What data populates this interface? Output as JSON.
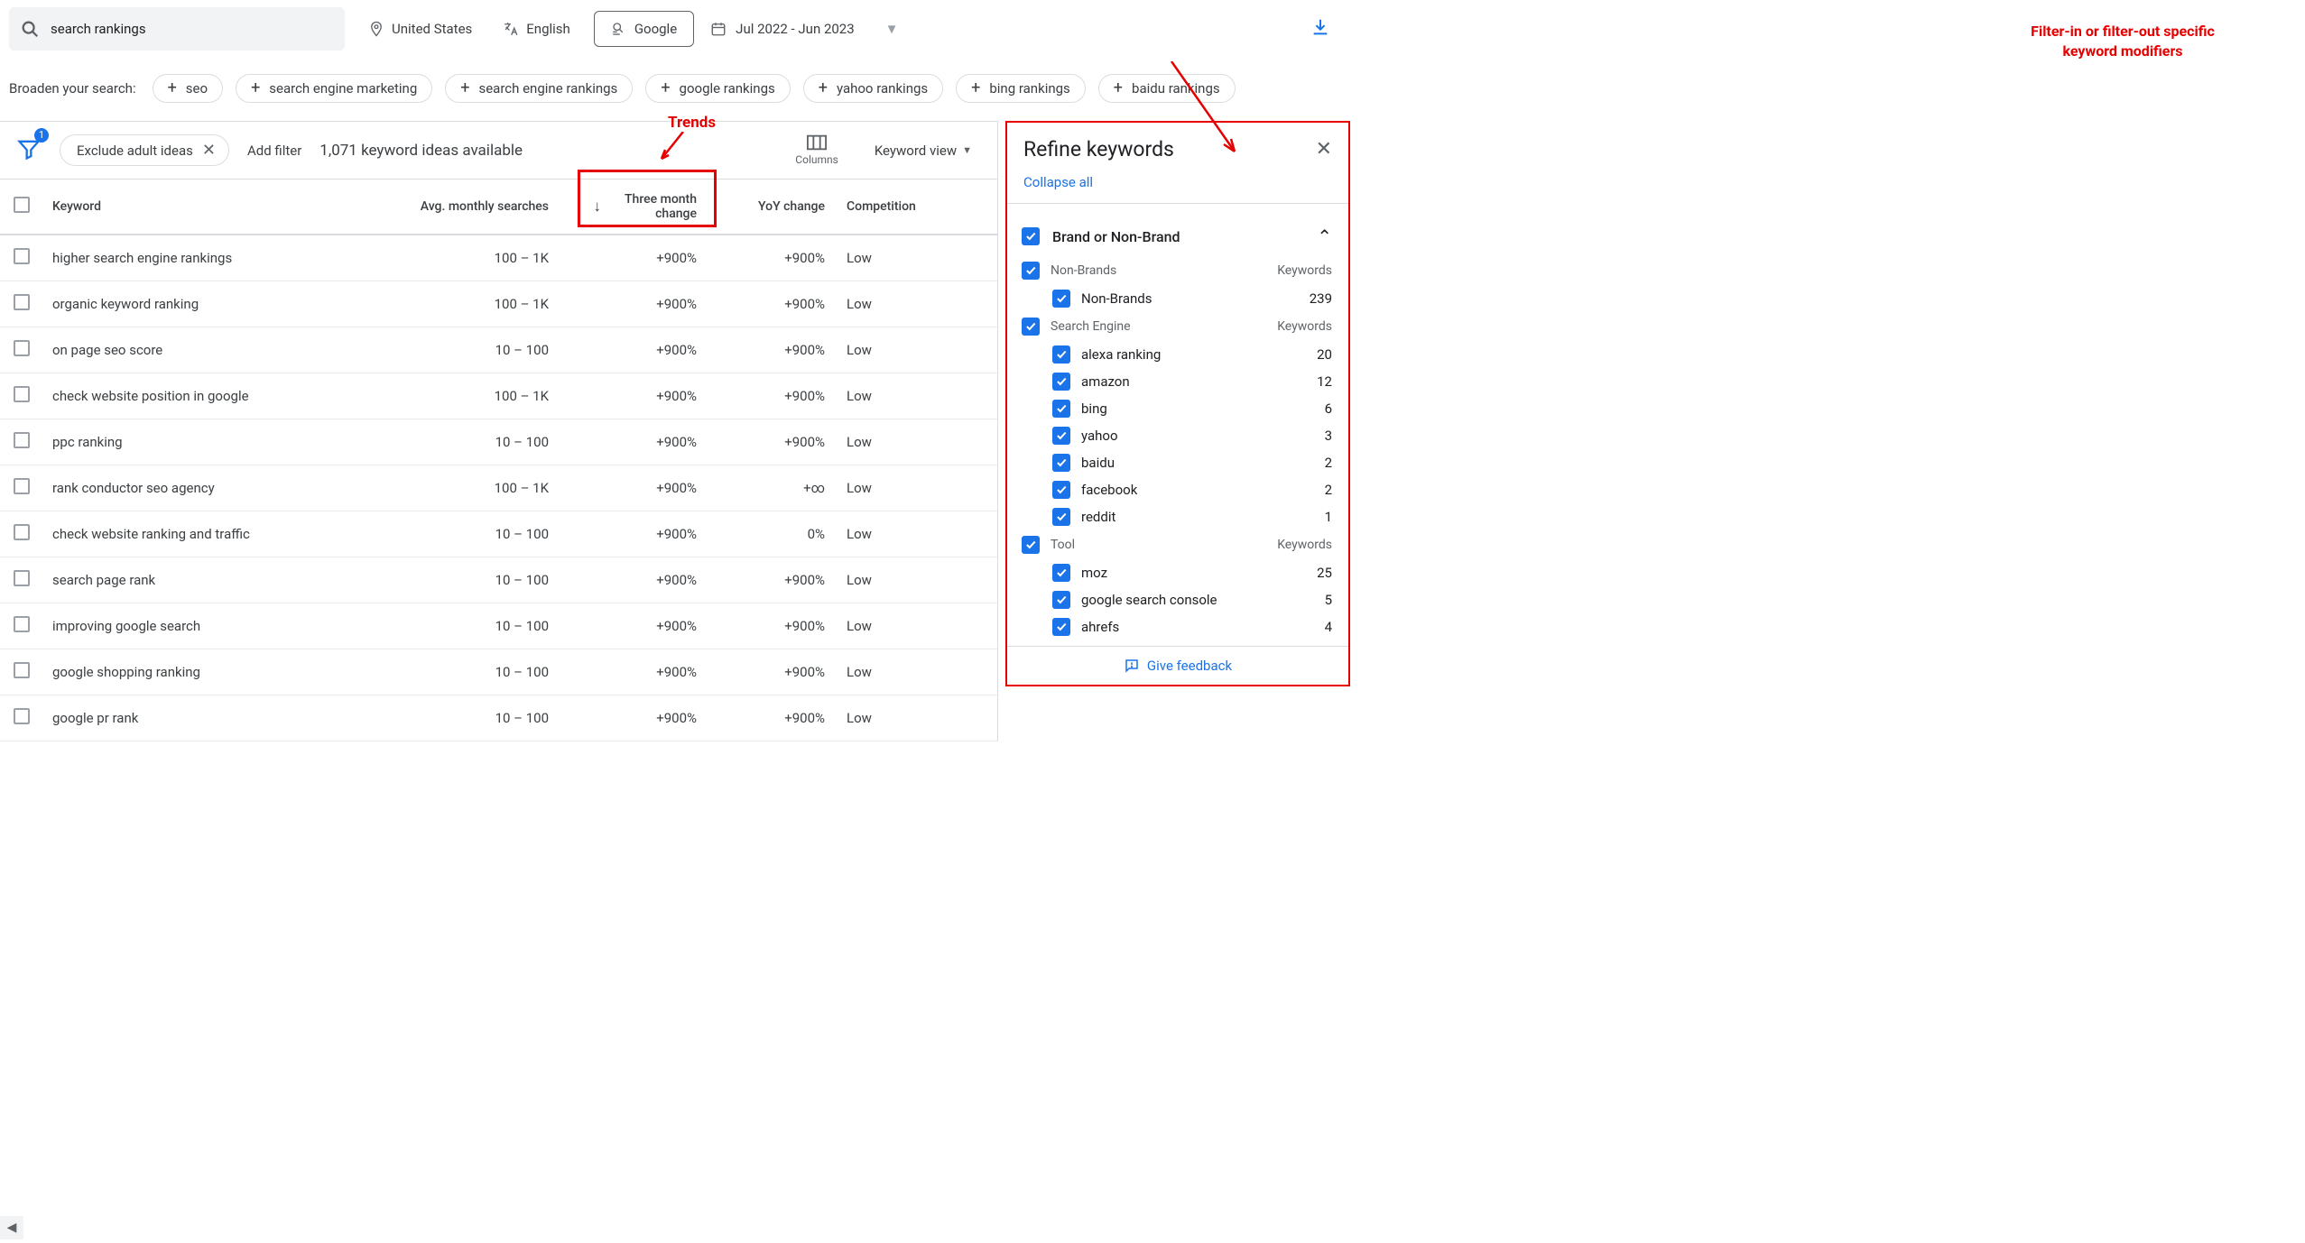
{
  "top": {
    "search_value": "search rankings",
    "location": "United States",
    "language": "English",
    "network": "Google",
    "date_range": "Jul 2022 - Jun 2023"
  },
  "broaden": {
    "label": "Broaden your search:",
    "chips": [
      "seo",
      "search engine marketing",
      "search engine rankings",
      "google rankings",
      "yahoo rankings",
      "bing rankings",
      "baidu rankings"
    ]
  },
  "filters": {
    "funnel_badge": "1",
    "exclude_pill": "Exclude adult ideas",
    "add_filter": "Add filter",
    "count_text": "1,071 keyword ideas available",
    "columns_label": "Columns",
    "keyword_view": "Keyword view"
  },
  "annotations": {
    "trends": "Trends",
    "filter_text": "Filter-in or filter-out specific keyword modifiers"
  },
  "table": {
    "headers": {
      "keyword": "Keyword",
      "searches": "Avg. monthly searches",
      "three_month": "Three month change",
      "yoy": "YoY change",
      "competition": "Competition"
    },
    "rows": [
      {
        "kw": "higher search engine rankings",
        "search": "100 – 1K",
        "tm": "+900%",
        "yoy": "+900%",
        "comp": "Low"
      },
      {
        "kw": "organic keyword ranking",
        "search": "100 – 1K",
        "tm": "+900%",
        "yoy": "+900%",
        "comp": "Low"
      },
      {
        "kw": "on page seo score",
        "search": "10 – 100",
        "tm": "+900%",
        "yoy": "+900%",
        "comp": "Low"
      },
      {
        "kw": "check website position in google",
        "search": "100 – 1K",
        "tm": "+900%",
        "yoy": "+900%",
        "comp": "Low"
      },
      {
        "kw": "ppc ranking",
        "search": "10 – 100",
        "tm": "+900%",
        "yoy": "+900%",
        "comp": "Low"
      },
      {
        "kw": "rank conductor seo agency",
        "search": "100 – 1K",
        "tm": "+900%",
        "yoy": "+∞",
        "comp": "Low"
      },
      {
        "kw": "check website ranking and traffic",
        "search": "10 – 100",
        "tm": "+900%",
        "yoy": "0%",
        "comp": "Low"
      },
      {
        "kw": "search page rank",
        "search": "10 – 100",
        "tm": "+900%",
        "yoy": "+900%",
        "comp": "Low"
      },
      {
        "kw": "improving google search",
        "search": "10 – 100",
        "tm": "+900%",
        "yoy": "+900%",
        "comp": "Low"
      },
      {
        "kw": "google shopping ranking",
        "search": "10 – 100",
        "tm": "+900%",
        "yoy": "+900%",
        "comp": "Low"
      },
      {
        "kw": "google pr rank",
        "search": "10 – 100",
        "tm": "+900%",
        "yoy": "+900%",
        "comp": "Low"
      }
    ]
  },
  "refine": {
    "title": "Refine keywords",
    "collapse": "Collapse all",
    "feedback": "Give feedback",
    "keywords_label": "Keywords",
    "category_title": "Brand or Non-Brand",
    "groups": [
      {
        "name": "Non-Brands",
        "items": [
          {
            "name": "Non-Brands",
            "count": 239
          }
        ]
      },
      {
        "name": "Search Engine",
        "items": [
          {
            "name": "alexa ranking",
            "count": 20
          },
          {
            "name": "amazon",
            "count": 12
          },
          {
            "name": "bing",
            "count": 6
          },
          {
            "name": "yahoo",
            "count": 3
          },
          {
            "name": "baidu",
            "count": 2
          },
          {
            "name": "facebook",
            "count": 2
          },
          {
            "name": "reddit",
            "count": 1
          }
        ]
      },
      {
        "name": "Tool",
        "items": [
          {
            "name": "moz",
            "count": 25
          },
          {
            "name": "google search console",
            "count": 5
          },
          {
            "name": "ahrefs",
            "count": 4
          }
        ]
      }
    ]
  },
  "colors": {
    "accent": "#1a73e8",
    "annotation": "#e60000",
    "border": "#dadce0",
    "text_muted": "#5f6368"
  }
}
